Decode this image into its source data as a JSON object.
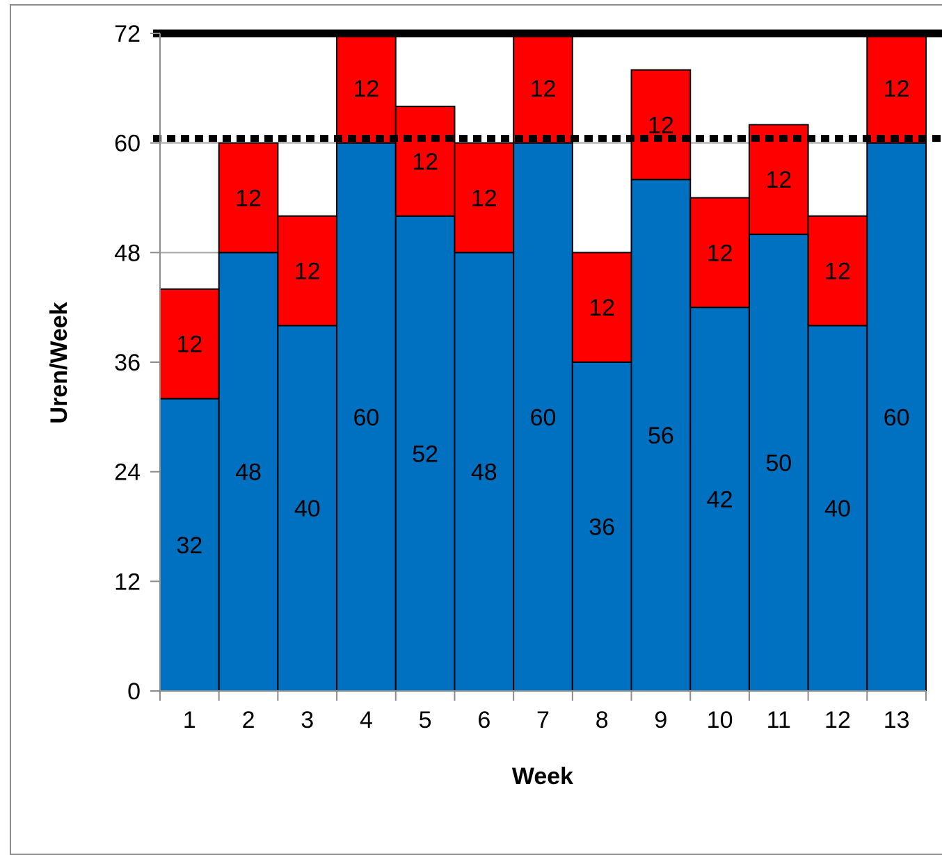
{
  "chart_data": {
    "type": "bar",
    "stacked": true,
    "title": "",
    "xlabel": "Week",
    "ylabel": "Uren/Week",
    "ylim": [
      0,
      72
    ],
    "yticks": [
      "0",
      "12",
      "24",
      "36",
      "48",
      "60",
      "72"
    ],
    "categories": [
      "1",
      "2",
      "3",
      "4",
      "5",
      "6",
      "7",
      "8",
      "9",
      "10",
      "11",
      "12",
      "13"
    ],
    "series": [
      {
        "values": [
          32,
          48,
          40,
          60,
          52,
          48,
          60,
          36,
          56,
          42,
          50,
          40,
          60
        ],
        "color": "#0070c0"
      },
      {
        "values": [
          12,
          12,
          12,
          12,
          12,
          12,
          12,
          12,
          12,
          12,
          12,
          12,
          12
        ],
        "color": "#ff0000"
      }
    ],
    "reference_lines": [
      {
        "value": 72,
        "style": "solid",
        "color": "#000000"
      },
      {
        "value": 60.5,
        "style": "dotted",
        "color": "#000000"
      }
    ],
    "grid": true,
    "legend": "none",
    "gridline_color": "#a6a6a6"
  }
}
